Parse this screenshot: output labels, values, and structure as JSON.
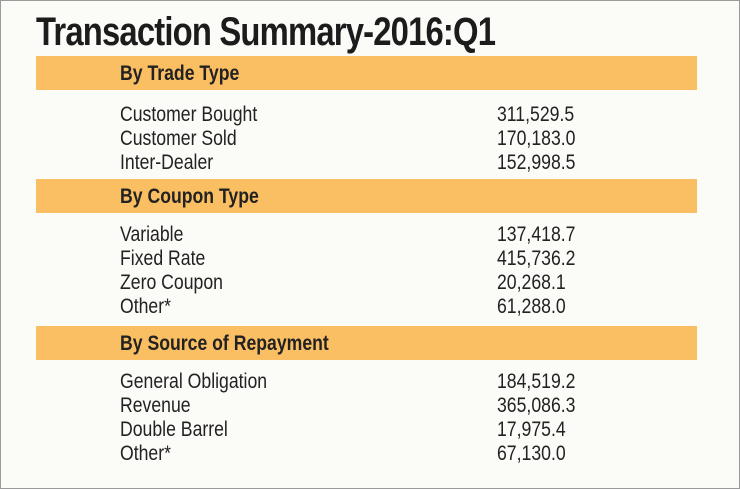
{
  "title": "Transaction Summary-2016:Q1",
  "colors": {
    "band": "#fbbf63",
    "background": "#fbfbf8",
    "text": "#222222"
  },
  "sections": [
    {
      "heading": "By Trade Type",
      "rows": [
        {
          "label": "Customer Bought",
          "value": "311,529.5"
        },
        {
          "label": "Customer Sold",
          "value": "170,183.0"
        },
        {
          "label": "Inter-Dealer",
          "value": "152,998.5"
        }
      ]
    },
    {
      "heading": "By Coupon Type",
      "rows": [
        {
          "label": "Variable",
          "value": "137,418.7"
        },
        {
          "label": "Fixed Rate",
          "value": "415,736.2"
        },
        {
          "label": "Zero Coupon",
          "value": "20,268.1"
        },
        {
          "label": "Other*",
          "value": "61,288.0"
        }
      ]
    },
    {
      "heading": "By Source of Repayment",
      "rows": [
        {
          "label": "General Obligation",
          "value": "184,519.2"
        },
        {
          "label": "Revenue",
          "value": "365,086.3"
        },
        {
          "label": "Double Barrel",
          "value": "17,975.4"
        },
        {
          "label": "Other*",
          "value": "67,130.0"
        }
      ]
    }
  ]
}
